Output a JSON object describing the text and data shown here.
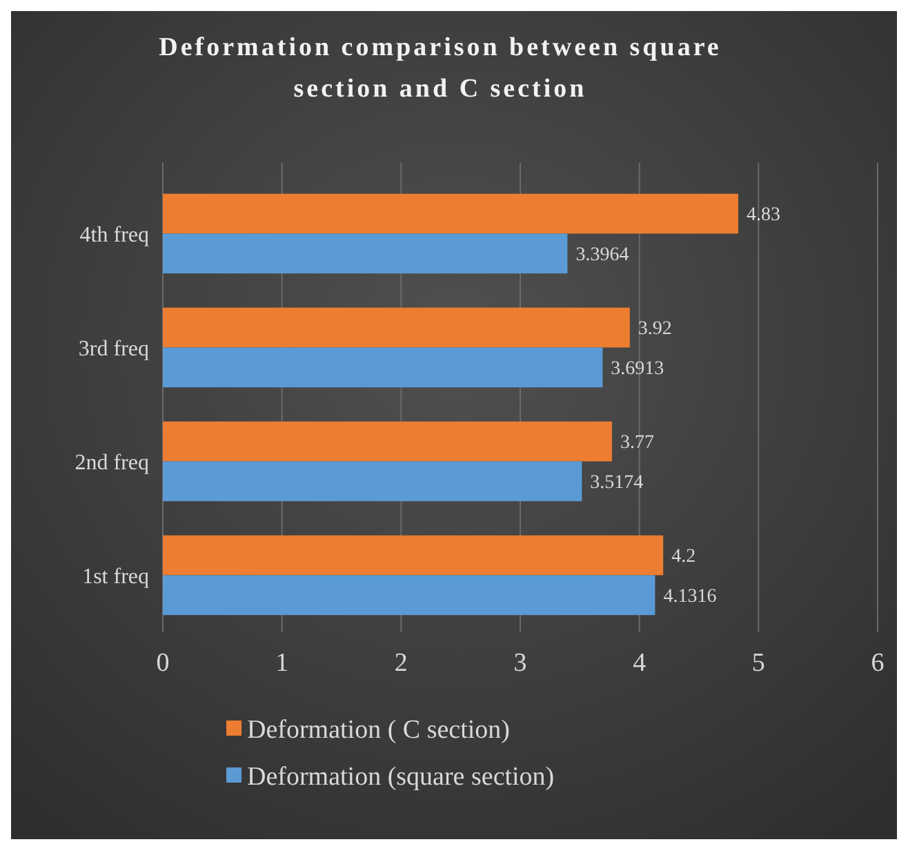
{
  "chart_data": {
    "type": "bar",
    "orientation": "horizontal",
    "title": "Deformation comparison between square section and C section",
    "categories": [
      "4th freq",
      "3rd freq",
      "2nd freq",
      "1st freq"
    ],
    "series": [
      {
        "name": "Deformation ( C section)",
        "color": "#ed7d31",
        "values": [
          4.83,
          3.92,
          3.77,
          4.2
        ]
      },
      {
        "name": "Deformation (square section)",
        "color": "#5b9bd5",
        "values": [
          3.3964,
          3.6913,
          3.5174,
          4.1316
        ]
      }
    ],
    "xlim": [
      0,
      6
    ],
    "xticks": [
      0,
      1,
      2,
      3,
      4,
      5,
      6
    ],
    "grid": "x",
    "legend": "bottom",
    "data_labels": true
  }
}
